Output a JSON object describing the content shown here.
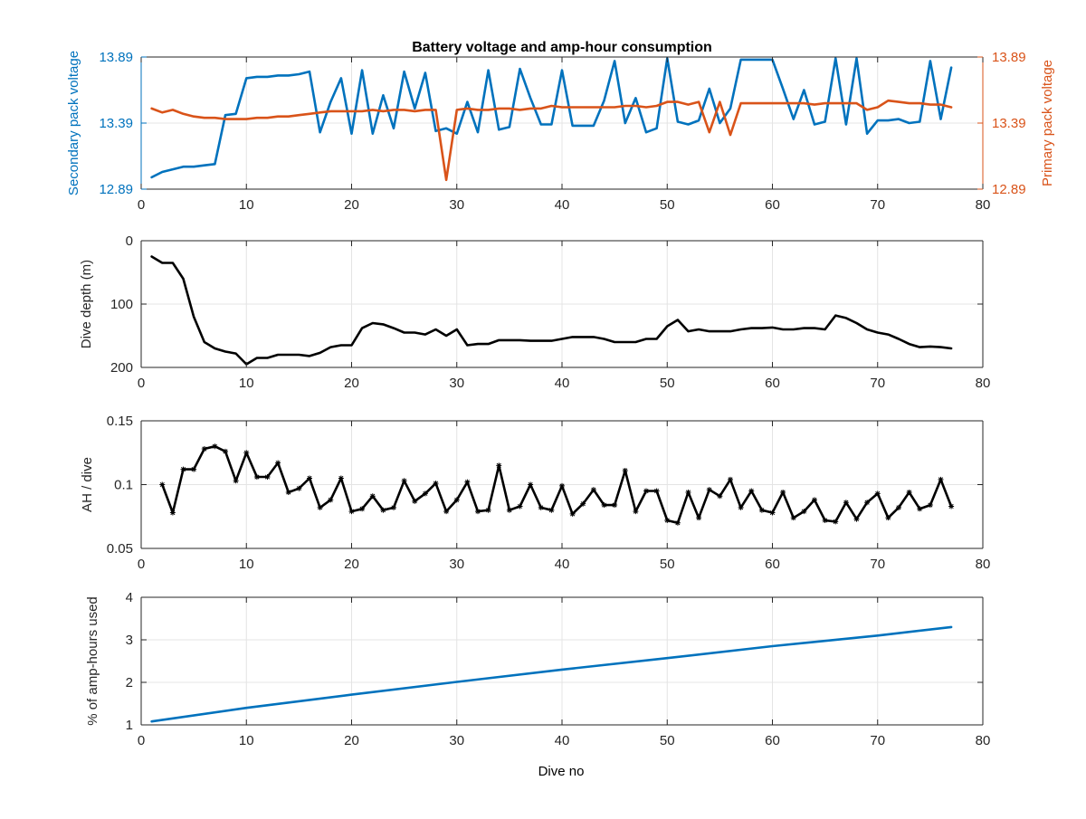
{
  "title": "Battery voltage and amp-hour consumption",
  "colors": {
    "blue": "#0072BD",
    "orange": "#D95319",
    "black": "#000000",
    "grid": "#e4e4e4"
  },
  "chart_data": [
    {
      "type": "line",
      "title": "Battery voltage and amp-hour consumption",
      "xlabel": "",
      "ylabel": "Secondary pack voltage",
      "ylabel_right": "Primary pack voltage",
      "xlim": [
        0,
        80
      ],
      "ylim": [
        12.89,
        13.89
      ],
      "xticks": [
        0,
        10,
        20,
        30,
        40,
        50,
        60,
        70,
        80
      ],
      "yticks": [
        "12.89",
        "13.39",
        "13.89"
      ],
      "yticks_right": [
        "12.89",
        "13.39",
        "13.89"
      ],
      "grid": true,
      "series": [
        {
          "axis": "left",
          "color": "#0072BD",
          "x": [
            1,
            2,
            3,
            4,
            5,
            6,
            7,
            8,
            9,
            10,
            11,
            12,
            13,
            14,
            15,
            16,
            17,
            18,
            19,
            20,
            21,
            22,
            23,
            24,
            25,
            26,
            27,
            28,
            29,
            30,
            31,
            32,
            33,
            34,
            35,
            36,
            37,
            38,
            39,
            40,
            41,
            42,
            43,
            44,
            45,
            46,
            47,
            48,
            49,
            50,
            51,
            52,
            53,
            54,
            55,
            56,
            57,
            58,
            59,
            60,
            61,
            62,
            63,
            64,
            65,
            66,
            67,
            68,
            69,
            70,
            71,
            72,
            73,
            74,
            75,
            76,
            77
          ],
          "values": [
            12.98,
            13.02,
            13.04,
            13.06,
            13.06,
            13.07,
            13.08,
            13.45,
            13.46,
            13.73,
            13.74,
            13.74,
            13.75,
            13.75,
            13.76,
            13.78,
            13.32,
            13.55,
            13.73,
            13.31,
            13.79,
            13.31,
            13.6,
            13.35,
            13.78,
            13.5,
            13.77,
            13.33,
            13.35,
            13.31,
            13.55,
            13.32,
            13.79,
            13.34,
            13.36,
            13.8,
            13.58,
            13.38,
            13.38,
            13.79,
            13.37,
            13.37,
            13.37,
            13.56,
            13.86,
            13.39,
            13.58,
            13.32,
            13.35,
            13.88,
            13.4,
            13.38,
            13.41,
            13.65,
            13.39,
            13.5,
            13.87,
            13.87,
            13.87,
            13.87,
            13.65,
            13.42,
            13.64,
            13.38,
            13.4,
            13.88,
            13.38,
            13.88,
            13.31,
            13.41,
            13.41,
            13.42,
            13.39,
            13.4,
            13.86,
            13.42,
            13.81
          ]
        },
        {
          "axis": "right",
          "color": "#D95319",
          "x": [
            1,
            2,
            3,
            4,
            5,
            6,
            7,
            8,
            9,
            10,
            11,
            12,
            13,
            14,
            15,
            16,
            17,
            18,
            19,
            20,
            21,
            22,
            23,
            24,
            25,
            26,
            27,
            28,
            29,
            30,
            31,
            32,
            33,
            34,
            35,
            36,
            37,
            38,
            39,
            40,
            41,
            42,
            43,
            44,
            45,
            46,
            47,
            48,
            49,
            50,
            51,
            52,
            53,
            54,
            55,
            56,
            57,
            58,
            59,
            60,
            61,
            62,
            63,
            64,
            65,
            66,
            67,
            68,
            69,
            70,
            71,
            72,
            73,
            74,
            75,
            76,
            77
          ],
          "values": [
            13.5,
            13.47,
            13.49,
            13.46,
            13.44,
            13.43,
            13.43,
            13.42,
            13.42,
            13.42,
            13.43,
            13.43,
            13.44,
            13.44,
            13.45,
            13.46,
            13.47,
            13.48,
            13.48,
            13.48,
            13.48,
            13.49,
            13.48,
            13.49,
            13.49,
            13.48,
            13.49,
            13.49,
            12.96,
            13.49,
            13.5,
            13.49,
            13.49,
            13.5,
            13.5,
            13.49,
            13.5,
            13.5,
            13.52,
            13.51,
            13.51,
            13.51,
            13.51,
            13.51,
            13.51,
            13.52,
            13.52,
            13.51,
            13.52,
            13.55,
            13.55,
            13.53,
            13.55,
            13.32,
            13.55,
            13.3,
            13.54,
            13.54,
            13.54,
            13.54,
            13.54,
            13.54,
            13.54,
            13.53,
            13.54,
            13.54,
            13.54,
            13.54,
            13.49,
            13.51,
            13.56,
            13.55,
            13.54,
            13.54,
            13.53,
            13.53,
            13.51
          ]
        }
      ]
    },
    {
      "type": "line",
      "xlabel": "",
      "ylabel": "Dive depth (m)",
      "xlim": [
        0,
        80
      ],
      "ylim": [
        0,
        200
      ],
      "y_reversed": true,
      "xticks": [
        0,
        10,
        20,
        30,
        40,
        50,
        60,
        70,
        80
      ],
      "yticks": [
        "0",
        "100",
        "200"
      ],
      "grid": true,
      "series": [
        {
          "color": "#000000",
          "x": [
            1,
            2,
            3,
            4,
            5,
            6,
            7,
            8,
            9,
            10,
            11,
            12,
            13,
            14,
            15,
            16,
            17,
            18,
            19,
            20,
            21,
            22,
            23,
            24,
            25,
            26,
            27,
            28,
            29,
            30,
            31,
            32,
            33,
            34,
            35,
            36,
            37,
            38,
            39,
            40,
            41,
            42,
            43,
            44,
            45,
            46,
            47,
            48,
            49,
            50,
            51,
            52,
            53,
            54,
            55,
            56,
            57,
            58,
            59,
            60,
            61,
            62,
            63,
            64,
            65,
            66,
            67,
            68,
            69,
            70,
            71,
            72,
            73,
            74,
            75,
            76,
            77
          ],
          "values": [
            25,
            35,
            35,
            60,
            120,
            160,
            170,
            175,
            178,
            195,
            185,
            185,
            180,
            180,
            180,
            182,
            177,
            168,
            165,
            165,
            138,
            130,
            132,
            138,
            145,
            145,
            148,
            140,
            150,
            140,
            165,
            163,
            163,
            157,
            157,
            157,
            158,
            158,
            158,
            155,
            152,
            152,
            152,
            155,
            160,
            160,
            160,
            155,
            155,
            135,
            125,
            143,
            140,
            143,
            143,
            143,
            140,
            138,
            138,
            137,
            140,
            140,
            138,
            138,
            140,
            118,
            122,
            130,
            140,
            145,
            148,
            155,
            163,
            168,
            167,
            168,
            170
          ]
        }
      ]
    },
    {
      "type": "line",
      "xlabel": "",
      "ylabel": "AH / dive",
      "xlim": [
        0,
        80
      ],
      "ylim": [
        0.05,
        0.15
      ],
      "xticks": [
        0,
        10,
        20,
        30,
        40,
        50,
        60,
        70,
        80
      ],
      "yticks": [
        "0.05",
        "0.1",
        "0.15"
      ],
      "grid": true,
      "series": [
        {
          "color": "#000000",
          "marker": "*",
          "x": [
            2,
            3,
            4,
            5,
            6,
            7,
            8,
            9,
            10,
            11,
            12,
            13,
            14,
            15,
            16,
            17,
            18,
            19,
            20,
            21,
            22,
            23,
            24,
            25,
            26,
            27,
            28,
            29,
            30,
            31,
            32,
            33,
            34,
            35,
            36,
            37,
            38,
            39,
            40,
            41,
            42,
            43,
            44,
            45,
            46,
            47,
            48,
            49,
            50,
            51,
            52,
            53,
            54,
            55,
            56,
            57,
            58,
            59,
            60,
            61,
            62,
            63,
            64,
            65,
            66,
            67,
            68,
            69,
            70,
            71,
            72,
            73,
            74,
            75,
            76,
            77
          ],
          "values": [
            0.1,
            0.078,
            0.112,
            0.112,
            0.128,
            0.13,
            0.126,
            0.103,
            0.125,
            0.106,
            0.106,
            0.117,
            0.094,
            0.097,
            0.105,
            0.082,
            0.088,
            0.105,
            0.079,
            0.081,
            0.091,
            0.08,
            0.082,
            0.103,
            0.087,
            0.093,
            0.101,
            0.079,
            0.088,
            0.102,
            0.079,
            0.08,
            0.115,
            0.08,
            0.083,
            0.1,
            0.082,
            0.08,
            0.099,
            0.077,
            0.085,
            0.096,
            0.084,
            0.084,
            0.111,
            0.079,
            0.095,
            0.095,
            0.072,
            0.07,
            0.094,
            0.074,
            0.096,
            0.091,
            0.104,
            0.082,
            0.095,
            0.08,
            0.078,
            0.094,
            0.074,
            0.079,
            0.088,
            0.072,
            0.071,
            0.086,
            0.073,
            0.086,
            0.093,
            0.074,
            0.082,
            0.094,
            0.081,
            0.084,
            0.104,
            0.083
          ]
        }
      ]
    },
    {
      "type": "line",
      "xlabel": "Dive no",
      "ylabel": "% of amp-hours used",
      "xlim": [
        0,
        80
      ],
      "ylim": [
        1,
        4
      ],
      "xticks": [
        0,
        10,
        20,
        30,
        40,
        50,
        60,
        70,
        80
      ],
      "yticks": [
        "1",
        "2",
        "3",
        "4"
      ],
      "grid": true,
      "series": [
        {
          "color": "#0072BD",
          "x": [
            1,
            10,
            20,
            30,
            40,
            50,
            60,
            70,
            77
          ],
          "values": [
            1.08,
            1.4,
            1.71,
            2.01,
            2.3,
            2.57,
            2.85,
            3.1,
            3.3
          ]
        }
      ]
    }
  ]
}
